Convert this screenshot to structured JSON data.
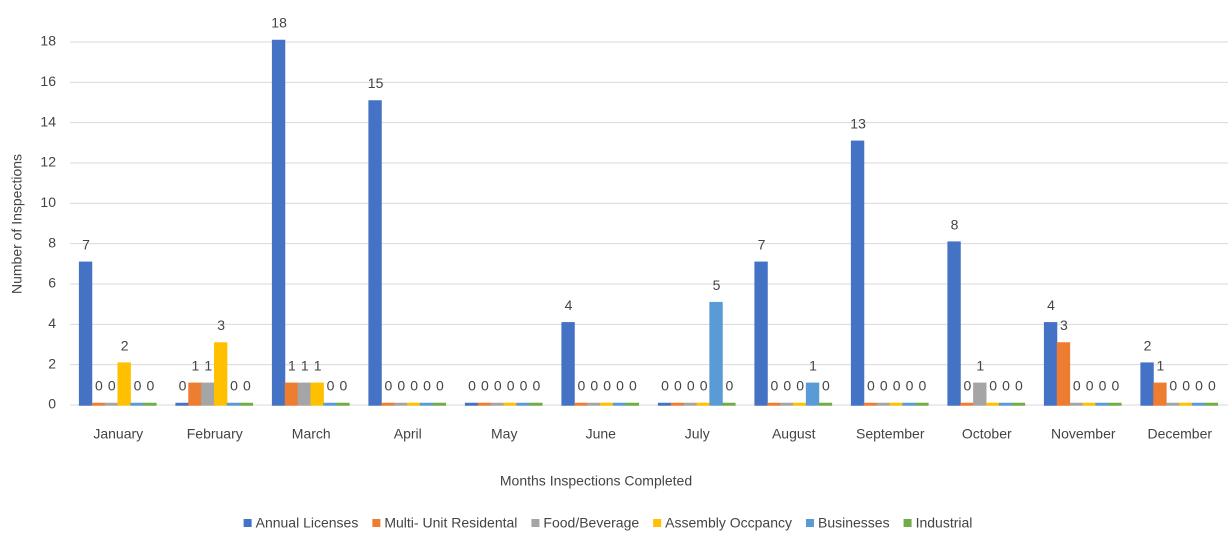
{
  "chart_data": {
    "type": "bar",
    "x_label": "Months Inspections Completed",
    "y_label": "Number of Inspections",
    "categories": [
      "January",
      "February",
      "March",
      "April",
      "May",
      "June",
      "July",
      "August",
      "September",
      "October",
      "November",
      "December"
    ],
    "series": [
      {
        "name": "Annual Licenses",
        "color": "#4472c4",
        "values": [
          7,
          0,
          18,
          15,
          0,
          4,
          0,
          7,
          13,
          8,
          4,
          2
        ]
      },
      {
        "name": "Multi- Unit Residental",
        "color": "#ed7d31",
        "values": [
          0,
          1,
          1,
          0,
          0,
          0,
          0,
          0,
          0,
          0,
          3,
          1
        ]
      },
      {
        "name": "Food/Beverage",
        "color": "#a5a5a5",
        "values": [
          0,
          1,
          1,
          0,
          0,
          0,
          0,
          0,
          0,
          1,
          0,
          0
        ]
      },
      {
        "name": "Assembly Occpancy",
        "color": "#ffc000",
        "values": [
          2,
          3,
          1,
          0,
          0,
          0,
          0,
          0,
          0,
          0,
          0,
          0
        ]
      },
      {
        "name": "Businesses",
        "color": "#5b9bd5",
        "values": [
          0,
          0,
          0,
          0,
          0,
          0,
          5,
          1,
          0,
          0,
          0,
          0
        ]
      },
      {
        "name": "Industrial",
        "color": "#70ad47",
        "values": [
          0,
          0,
          0,
          0,
          0,
          0,
          0,
          0,
          0,
          0,
          0,
          0
        ]
      }
    ],
    "ylim": [
      0,
      18
    ],
    "yticks": [
      0,
      2,
      4,
      6,
      8,
      10,
      12,
      14,
      16,
      18
    ],
    "grid": true,
    "legend": "bottom"
  }
}
